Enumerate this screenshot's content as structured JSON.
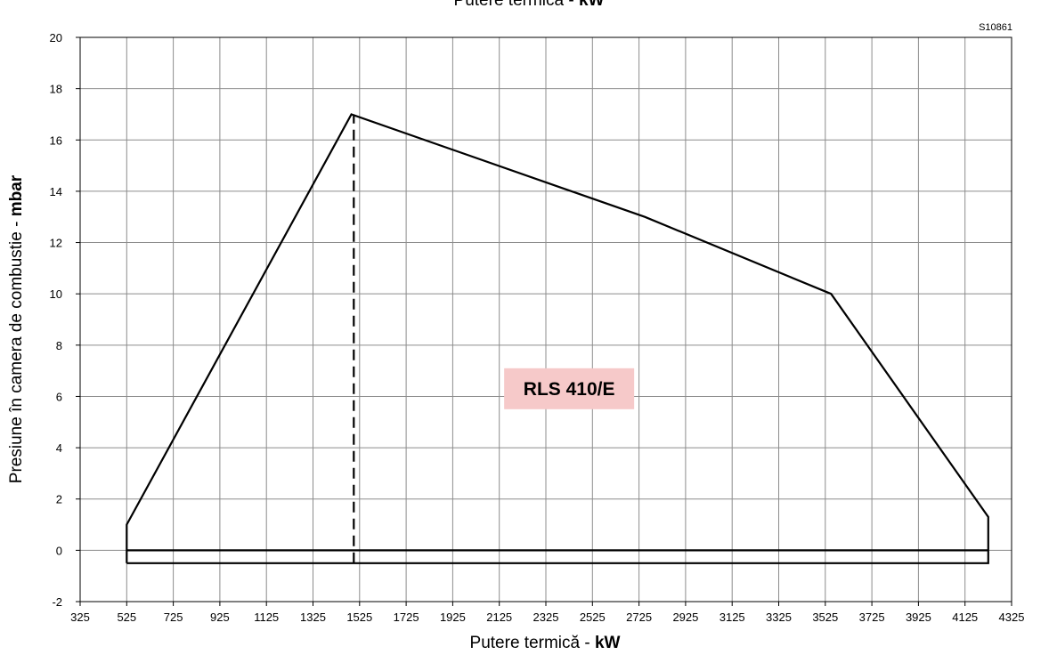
{
  "chart_data": {
    "type": "line",
    "top_title": {
      "prefix": "Putere termică - ",
      "unit": "kW"
    },
    "code": "S10861",
    "xlabel": {
      "prefix": "Putere termică - ",
      "unit": "kW"
    },
    "ylabel": {
      "prefix": "Presiune în camera de combustie - ",
      "unit": "mbar"
    },
    "xlim": [
      325,
      4325
    ],
    "ylim": [
      -2,
      20
    ],
    "x_ticks": [
      325,
      525,
      725,
      925,
      1125,
      1325,
      1525,
      1725,
      1925,
      2125,
      2325,
      2525,
      2725,
      2925,
      3125,
      3325,
      3525,
      3725,
      3925,
      4125,
      4325
    ],
    "y_ticks": [
      -2,
      0,
      2,
      4,
      6,
      8,
      10,
      12,
      14,
      16,
      18,
      20
    ],
    "grid": true,
    "envelope_label": "RLS 410/E",
    "envelope_label_bg": "#f6c9c9",
    "series": [
      {
        "values": [
          {
            "x": 525,
            "y": -0.5
          },
          {
            "x": 525,
            "y": 1
          },
          {
            "x": 1490,
            "y": 17
          },
          {
            "x": 2750,
            "y": 13
          },
          {
            "x": 3550,
            "y": 10
          },
          {
            "x": 4225,
            "y": 1.3
          },
          {
            "x": 4225,
            "y": -0.5
          },
          {
            "x": 525,
            "y": -0.5
          }
        ]
      },
      {
        "values": [
          {
            "x": 525,
            "y": 0
          },
          {
            "x": 4225,
            "y": 0
          }
        ]
      },
      {
        "style": "dashed",
        "values": [
          {
            "x": 1500,
            "y": -0.5
          },
          {
            "x": 1500,
            "y": 17
          }
        ]
      }
    ]
  }
}
